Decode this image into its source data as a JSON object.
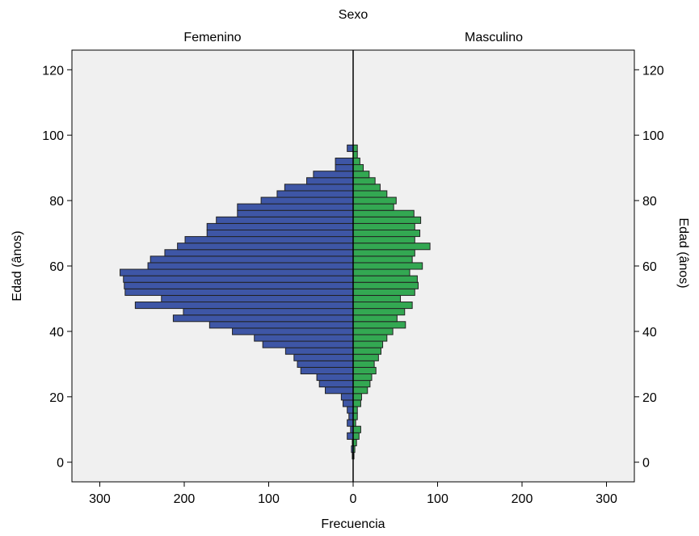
{
  "chart_data": {
    "type": "bar",
    "orientation": "horizontal-population-pyramid",
    "title": "Sexo",
    "panels": [
      "Femenino",
      "Masculino"
    ],
    "xlabel": "Frecuencia",
    "ylabel_left": "Edad (ânos)",
    "ylabel_right": "Edad (ânos)",
    "x_ticks": [
      300,
      200,
      100,
      0,
      100,
      200,
      300
    ],
    "y_ticks": [
      0,
      20,
      40,
      60,
      80,
      100,
      120
    ],
    "xlim": [
      -333,
      333
    ],
    "ylim": [
      -6,
      126
    ],
    "bin_width": 2,
    "grid": false,
    "legend": "none",
    "colors": {
      "femenino": "#3e56a6",
      "masculino": "#33a852",
      "background": "#f0f0f0",
      "bar_edge": "#222222"
    },
    "series": [
      {
        "name": "Femenino",
        "age_bins": [
          2,
          4,
          6,
          8,
          10,
          12,
          14,
          16,
          18,
          20,
          22,
          24,
          26,
          28,
          30,
          32,
          34,
          36,
          38,
          40,
          42,
          44,
          46,
          48,
          50,
          52,
          54,
          56,
          58,
          60,
          62,
          64,
          66,
          68,
          70,
          72,
          74,
          76,
          78,
          80,
          82,
          84,
          86,
          88,
          90,
          92,
          94,
          96
        ],
        "values": [
          1,
          2,
          1,
          7,
          3,
          7,
          5,
          7,
          12,
          14,
          33,
          40,
          43,
          62,
          66,
          70,
          80,
          107,
          117,
          143,
          170,
          213,
          201,
          258,
          227,
          270,
          271,
          272,
          276,
          243,
          240,
          223,
          208,
          199,
          173,
          173,
          162,
          137,
          137,
          109,
          90,
          81,
          55,
          47,
          21,
          21,
          0,
          7
        ]
      },
      {
        "name": "Masculino",
        "age_bins": [
          2,
          4,
          6,
          8,
          10,
          12,
          14,
          16,
          18,
          20,
          22,
          24,
          26,
          28,
          30,
          32,
          34,
          36,
          38,
          40,
          42,
          44,
          46,
          48,
          50,
          52,
          54,
          56,
          58,
          60,
          62,
          64,
          66,
          68,
          70,
          72,
          74,
          76,
          78,
          80,
          82,
          84,
          86,
          88,
          90,
          92,
          94,
          96
        ],
        "values": [
          1,
          2,
          4,
          7,
          9,
          3,
          5,
          5,
          9,
          10,
          17,
          20,
          22,
          27,
          25,
          30,
          33,
          35,
          40,
          47,
          62,
          52,
          61,
          70,
          56,
          73,
          77,
          76,
          67,
          82,
          70,
          73,
          91,
          73,
          79,
          73,
          80,
          72,
          48,
          51,
          40,
          32,
          26,
          19,
          12,
          8,
          5,
          5
        ]
      }
    ]
  }
}
